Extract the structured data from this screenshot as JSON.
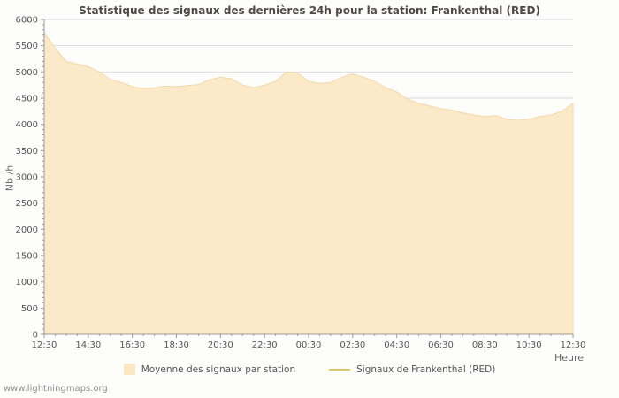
{
  "page": {
    "watermark": "www.lightningmaps.org"
  },
  "chart_data": {
    "type": "area",
    "title": "Statistique des signaux des dernières 24h pour la station: Frankenthal (RED)",
    "xlabel": "Heure",
    "ylabel": "Nb /h",
    "ylim": [
      0,
      6000
    ],
    "ytick_step": 500,
    "y_minor_step": 100,
    "grid": "horizontal-only",
    "legend_position": "bottom-center",
    "xtick_labels": [
      "12:30",
      "14:30",
      "16:30",
      "18:30",
      "20:30",
      "22:30",
      "00:30",
      "02:30",
      "04:30",
      "06:30",
      "08:30",
      "10:30",
      "12:30"
    ],
    "points_per_xtick": 4,
    "x_interval_minutes": 30,
    "series": [
      {
        "name": "Moyenne des signaux par station",
        "type": "area",
        "values": [
          5750,
          5450,
          5200,
          5150,
          5100,
          5000,
          4850,
          4800,
          4720,
          4680,
          4700,
          4730,
          4720,
          4740,
          4760,
          4850,
          4900,
          4870,
          4750,
          4700,
          4750,
          4820,
          5000,
          4980,
          4820,
          4780,
          4800,
          4900,
          4960,
          4900,
          4820,
          4700,
          4620,
          4480,
          4400,
          4350,
          4300,
          4270,
          4220,
          4180,
          4150,
          4170,
          4100,
          4080,
          4100,
          4150,
          4180,
          4250,
          4400
        ]
      }
    ],
    "legend": [
      {
        "label": "Moyenne des signaux par station",
        "type": "area",
        "color": "#fbe7c4"
      },
      {
        "label": "Signaux de Frankenthal (RED)",
        "type": "line",
        "color": "#d9c76c"
      }
    ],
    "colors": {
      "area_fill": "#fce9c8",
      "area_edge": "#f3d9a9",
      "grid": "#dcdcdc",
      "axis": "#9a9a9a",
      "tick_text": "#555555",
      "title_text": "#4e4a45"
    }
  }
}
